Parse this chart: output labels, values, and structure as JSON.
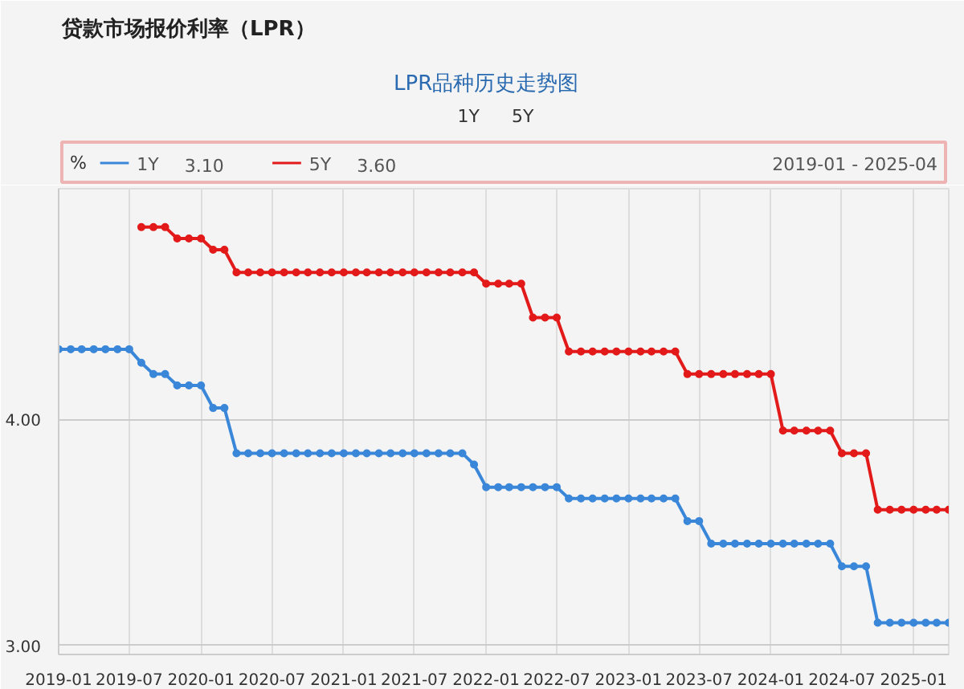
{
  "chart_data": {
    "type": "line",
    "title": "贷款市场报价利率（LPR）",
    "subtitle": "LPR品种历史走势图",
    "ylabel": "%",
    "series": [
      {
        "name": "1Y",
        "color": "#3a87d9",
        "x": [
          "2019-01",
          "2019-02",
          "2019-03",
          "2019-04",
          "2019-05",
          "2019-06",
          "2019-07",
          "2019-08",
          "2019-09",
          "2019-10",
          "2019-11",
          "2019-12",
          "2020-01",
          "2020-02",
          "2020-03",
          "2020-04",
          "2020-05",
          "2020-06",
          "2020-07",
          "2020-08",
          "2020-09",
          "2020-10",
          "2020-11",
          "2020-12",
          "2021-01",
          "2021-02",
          "2021-03",
          "2021-04",
          "2021-05",
          "2021-06",
          "2021-07",
          "2021-08",
          "2021-09",
          "2021-10",
          "2021-11",
          "2021-12",
          "2022-01",
          "2022-02",
          "2022-03",
          "2022-04",
          "2022-05",
          "2022-06",
          "2022-07",
          "2022-08",
          "2022-09",
          "2022-10",
          "2022-11",
          "2022-12",
          "2023-01",
          "2023-02",
          "2023-03",
          "2023-04",
          "2023-05",
          "2023-06",
          "2023-07",
          "2023-08",
          "2023-09",
          "2023-10",
          "2023-11",
          "2023-12",
          "2024-01",
          "2024-02",
          "2024-03",
          "2024-04",
          "2024-05",
          "2024-06",
          "2024-07",
          "2024-08",
          "2024-09",
          "2024-10",
          "2024-11",
          "2024-12",
          "2025-01",
          "2025-02",
          "2025-03",
          "2025-04"
        ],
        "values": [
          4.31,
          4.31,
          4.31,
          4.31,
          4.31,
          4.31,
          4.31,
          4.25,
          4.2,
          4.2,
          4.15,
          4.15,
          4.15,
          4.05,
          4.05,
          3.85,
          3.85,
          3.85,
          3.85,
          3.85,
          3.85,
          3.85,
          3.85,
          3.85,
          3.85,
          3.85,
          3.85,
          3.85,
          3.85,
          3.85,
          3.85,
          3.85,
          3.85,
          3.85,
          3.85,
          3.8,
          3.7,
          3.7,
          3.7,
          3.7,
          3.7,
          3.7,
          3.7,
          3.65,
          3.65,
          3.65,
          3.65,
          3.65,
          3.65,
          3.65,
          3.65,
          3.65,
          3.65,
          3.55,
          3.55,
          3.45,
          3.45,
          3.45,
          3.45,
          3.45,
          3.45,
          3.45,
          3.45,
          3.45,
          3.45,
          3.45,
          3.35,
          3.35,
          3.35,
          3.1,
          3.1,
          3.1,
          3.1,
          3.1,
          3.1,
          3.1
        ]
      },
      {
        "name": "5Y",
        "color": "#e31a1a",
        "x": [
          "2019-08",
          "2019-09",
          "2019-10",
          "2019-11",
          "2019-12",
          "2020-01",
          "2020-02",
          "2020-03",
          "2020-04",
          "2020-05",
          "2020-06",
          "2020-07",
          "2020-08",
          "2020-09",
          "2020-10",
          "2020-11",
          "2020-12",
          "2021-01",
          "2021-02",
          "2021-03",
          "2021-04",
          "2021-05",
          "2021-06",
          "2021-07",
          "2021-08",
          "2021-09",
          "2021-10",
          "2021-11",
          "2021-12",
          "2022-01",
          "2022-02",
          "2022-03",
          "2022-04",
          "2022-05",
          "2022-06",
          "2022-07",
          "2022-08",
          "2022-09",
          "2022-10",
          "2022-11",
          "2022-12",
          "2023-01",
          "2023-02",
          "2023-03",
          "2023-04",
          "2023-05",
          "2023-06",
          "2023-07",
          "2023-08",
          "2023-09",
          "2023-10",
          "2023-11",
          "2023-12",
          "2024-01",
          "2024-02",
          "2024-03",
          "2024-04",
          "2024-05",
          "2024-06",
          "2024-07",
          "2024-08",
          "2024-09",
          "2024-10",
          "2024-11",
          "2024-12",
          "2025-01",
          "2025-02",
          "2025-03",
          "2025-04"
        ],
        "values": [
          4.85,
          4.85,
          4.85,
          4.8,
          4.8,
          4.8,
          4.75,
          4.75,
          4.65,
          4.65,
          4.65,
          4.65,
          4.65,
          4.65,
          4.65,
          4.65,
          4.65,
          4.65,
          4.65,
          4.65,
          4.65,
          4.65,
          4.65,
          4.65,
          4.65,
          4.65,
          4.65,
          4.65,
          4.65,
          4.6,
          4.6,
          4.6,
          4.6,
          4.45,
          4.45,
          4.45,
          4.3,
          4.3,
          4.3,
          4.3,
          4.3,
          4.3,
          4.3,
          4.3,
          4.3,
          4.3,
          4.2,
          4.2,
          4.2,
          4.2,
          4.2,
          4.2,
          4.2,
          4.2,
          3.95,
          3.95,
          3.95,
          3.95,
          3.95,
          3.85,
          3.85,
          3.85,
          3.6,
          3.6,
          3.6,
          3.6,
          3.6,
          3.6,
          3.6
        ]
      }
    ],
    "xlim": [
      "2019-01",
      "2025-04"
    ],
    "xticks": [
      "2019-01",
      "2019-07",
      "2020-01",
      "2020-07",
      "2021-01",
      "2021-07",
      "2022-01",
      "2022-07",
      "2023-01",
      "2023-07",
      "2024-01",
      "2024-07",
      "2025-01"
    ],
    "ylim": [
      2.96,
      5.02
    ],
    "yticks": [
      {
        "value": 3,
        "label": "3.00"
      },
      {
        "value": 4,
        "label": "4.00"
      }
    ],
    "grid": true,
    "legend": "top",
    "marker": "circle",
    "line_style": "solid",
    "annotations": [
      "3.10",
      "3.60",
      "2019-01 - 2025-04"
    ]
  }
}
